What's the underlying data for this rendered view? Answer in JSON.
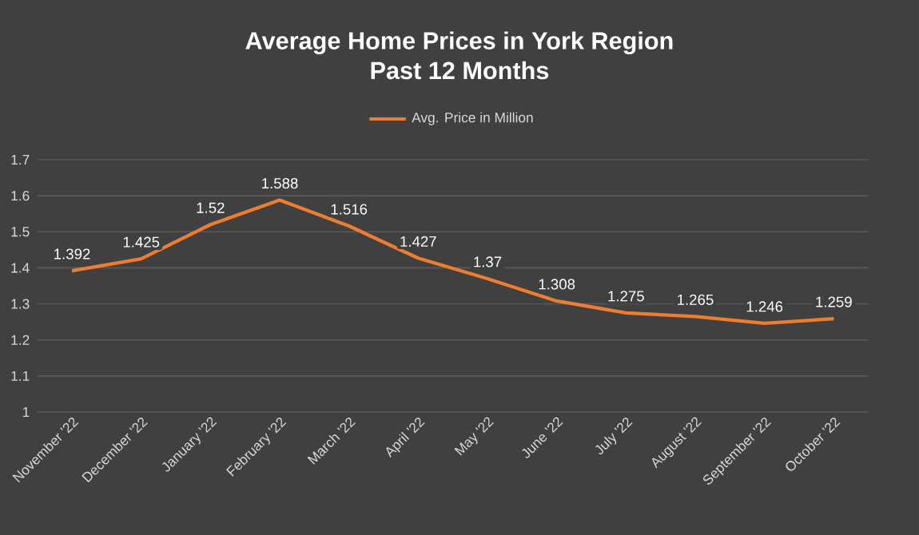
{
  "chart_data": {
    "type": "line",
    "title": "Average Home Prices in York Region",
    "subtitle": "Past 12 Months",
    "categories": [
      "November '22",
      "December '22",
      "January '22",
      "February '22",
      "March '22",
      "April '22",
      "May '22",
      "June '22",
      "July '22",
      "August '22",
      "September '22",
      "October '22"
    ],
    "series": [
      {
        "name": "Avg. Price in Million",
        "color": "#ed7d31",
        "values": [
          1.392,
          1.425,
          1.52,
          1.588,
          1.516,
          1.427,
          1.37,
          1.308,
          1.275,
          1.265,
          1.246,
          1.259
        ]
      }
    ],
    "ylim": [
      1,
      1.7
    ],
    "yticks": [
      1,
      1.1,
      1.2,
      1.3,
      1.4,
      1.5,
      1.6,
      1.7
    ],
    "grid": "y",
    "legend": "top",
    "data_labels": true,
    "marker": "none",
    "line_style": "solid"
  }
}
